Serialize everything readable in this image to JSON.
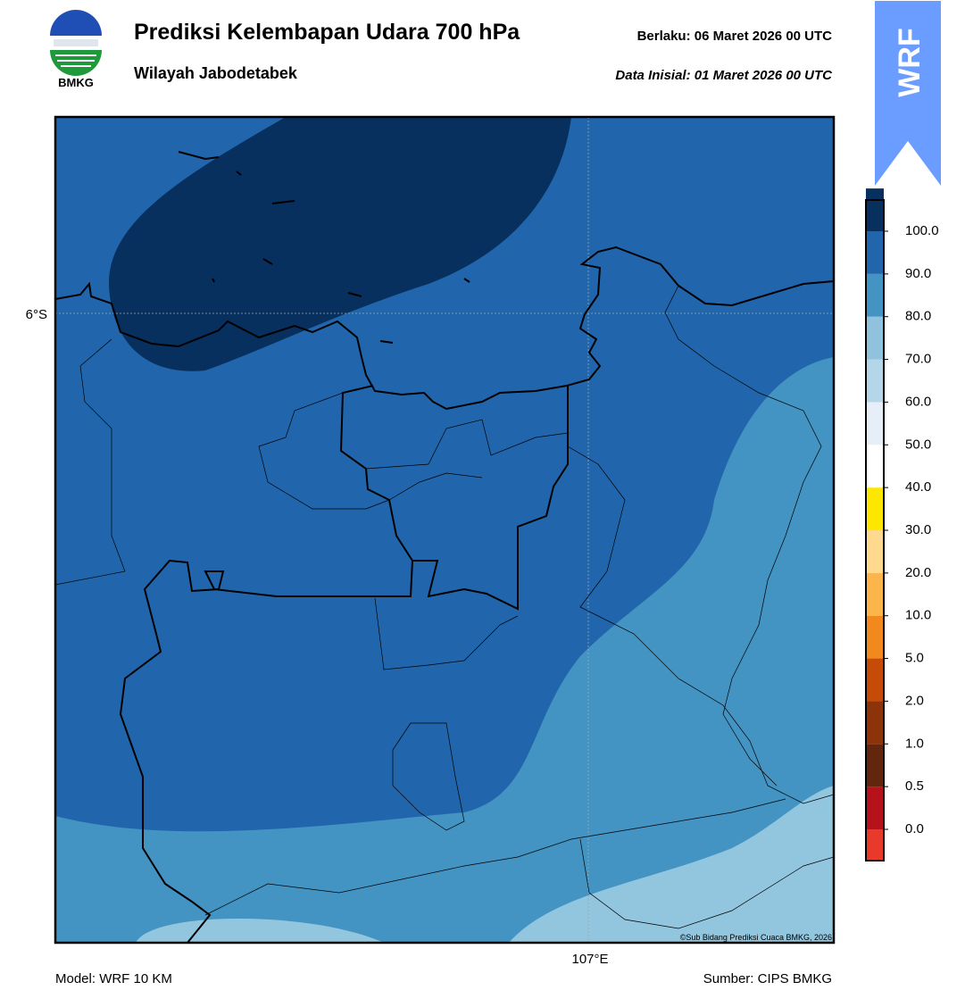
{
  "header": {
    "title": "Prediksi Kelembapan Udara 700 hPa",
    "subtitle": "Wilayah Jabodetabek",
    "valid": "Berlaku:  06 Maret 2026 00 UTC",
    "initial": "Data Inisial:  01 Maret 2026 00 UTC"
  },
  "logo": {
    "text": "BMKG"
  },
  "badge": {
    "text": "WRF"
  },
  "map": {
    "lat_label": "6°S",
    "lon_label": "107°E",
    "credit": "©Sub Bidang Prediksi Cuaca BMKG, 2026"
  },
  "colorbar": {
    "labels": [
      "0.0",
      "0.5",
      "1.0",
      "2.0",
      "5.0",
      "10.0",
      "20.0",
      "30.0",
      "40.0",
      "50.0",
      "60.0",
      "70.0",
      "80.0",
      "90.0",
      "100.0"
    ],
    "colors": [
      "#e8392a",
      "#b5121b",
      "#62260f",
      "#8c330a",
      "#c64b06",
      "#f2891c",
      "#fcb54a",
      "#fed98e",
      "#fde600",
      "#ffffff",
      "#e6eef7",
      "#b5d5e9",
      "#90c2dd",
      "#4393c3",
      "#2166ac",
      "#08305e",
      "#2a0845"
    ]
  },
  "footer": {
    "model": "Model: WRF 10 KM",
    "source": "Sumber: CIPS BMKG"
  }
}
